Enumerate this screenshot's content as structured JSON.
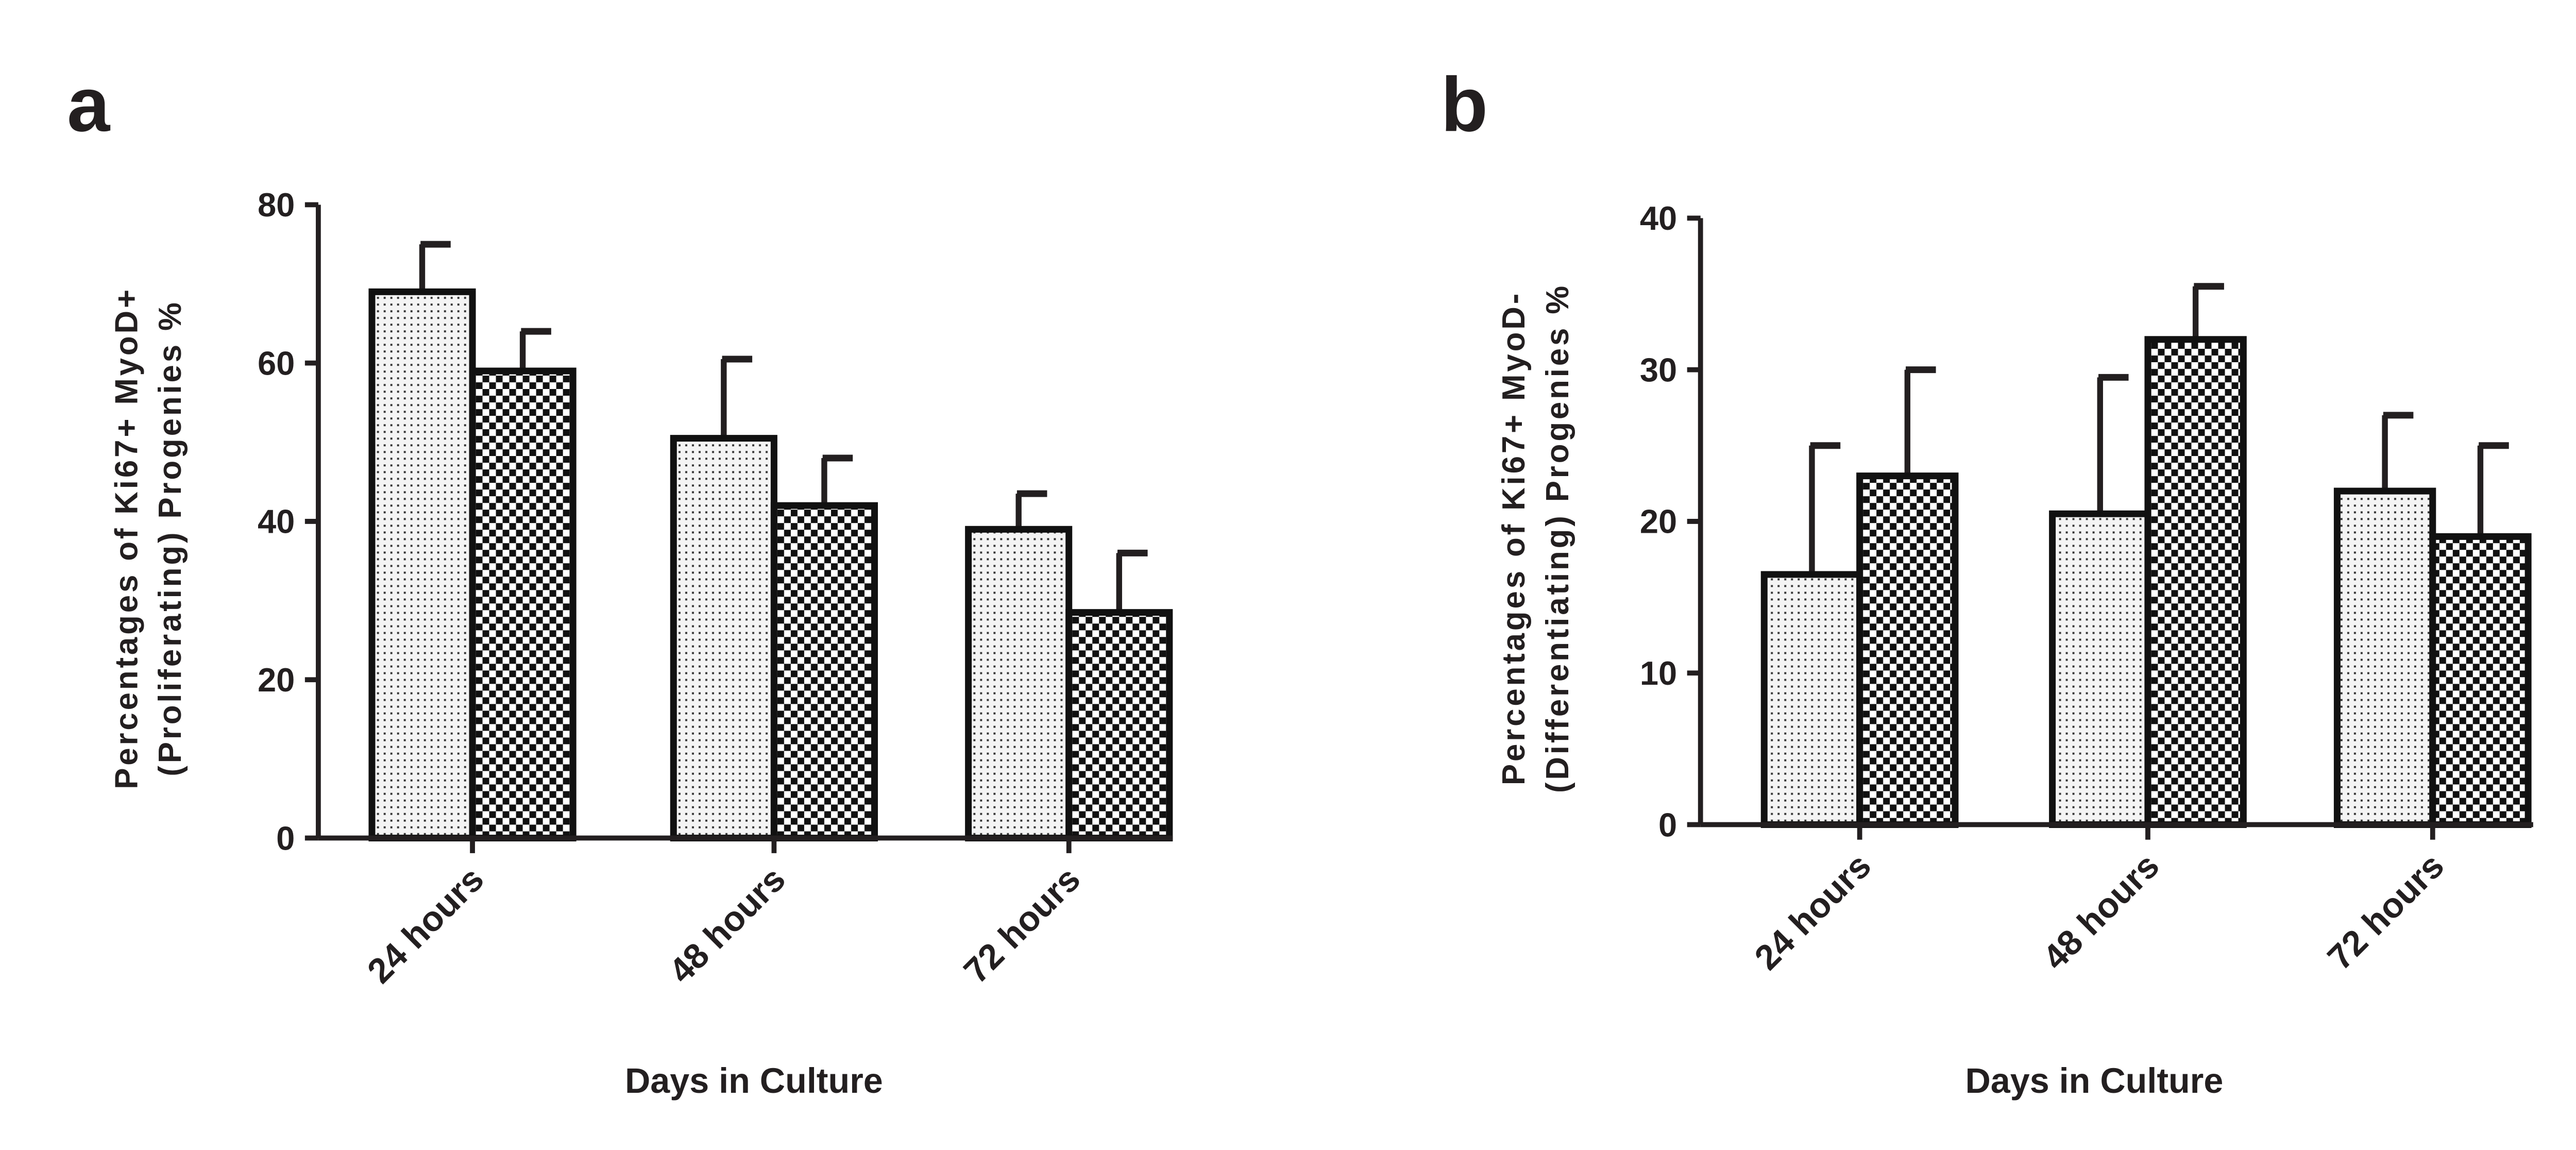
{
  "chart_data": [
    {
      "type": "bar",
      "panel_label": "a",
      "title": "",
      "xlabel": "Days in Culture",
      "ylabel_lines": [
        "Percentages of Ki67+ MyoD+",
        "(Proliferating) Progenies %"
      ],
      "categories": [
        "24 hours",
        "48 hours",
        "72 hours"
      ],
      "ylim": [
        0,
        80
      ],
      "yticks": [
        0,
        20,
        40,
        60,
        80
      ],
      "grid": false,
      "series": [
        {
          "name": "dotted",
          "pattern": "dots",
          "values": [
            69,
            50.5,
            39
          ],
          "errors": [
            6,
            10,
            4.5
          ]
        },
        {
          "name": "checkered",
          "pattern": "checker",
          "values": [
            59,
            42,
            28.5
          ],
          "errors": [
            5,
            6,
            7.5
          ]
        }
      ]
    },
    {
      "type": "bar",
      "panel_label": "b",
      "title": "",
      "xlabel": "Days in Culture",
      "ylabel_lines": [
        "Percentages of Ki67+ MyoD-",
        "(Differentiating) Progenies %"
      ],
      "categories": [
        "24 hours",
        "48 hours",
        "72 hours"
      ],
      "ylim": [
        0,
        40
      ],
      "yticks": [
        0,
        10,
        20,
        30,
        40
      ],
      "grid": false,
      "series": [
        {
          "name": "dotted",
          "pattern": "dots",
          "values": [
            16.5,
            20.5,
            22
          ],
          "errors": [
            8.5,
            9,
            5
          ]
        },
        {
          "name": "checkered",
          "pattern": "checker",
          "values": [
            23,
            32,
            19
          ],
          "errors": [
            7,
            3.5,
            6
          ]
        }
      ]
    }
  ]
}
